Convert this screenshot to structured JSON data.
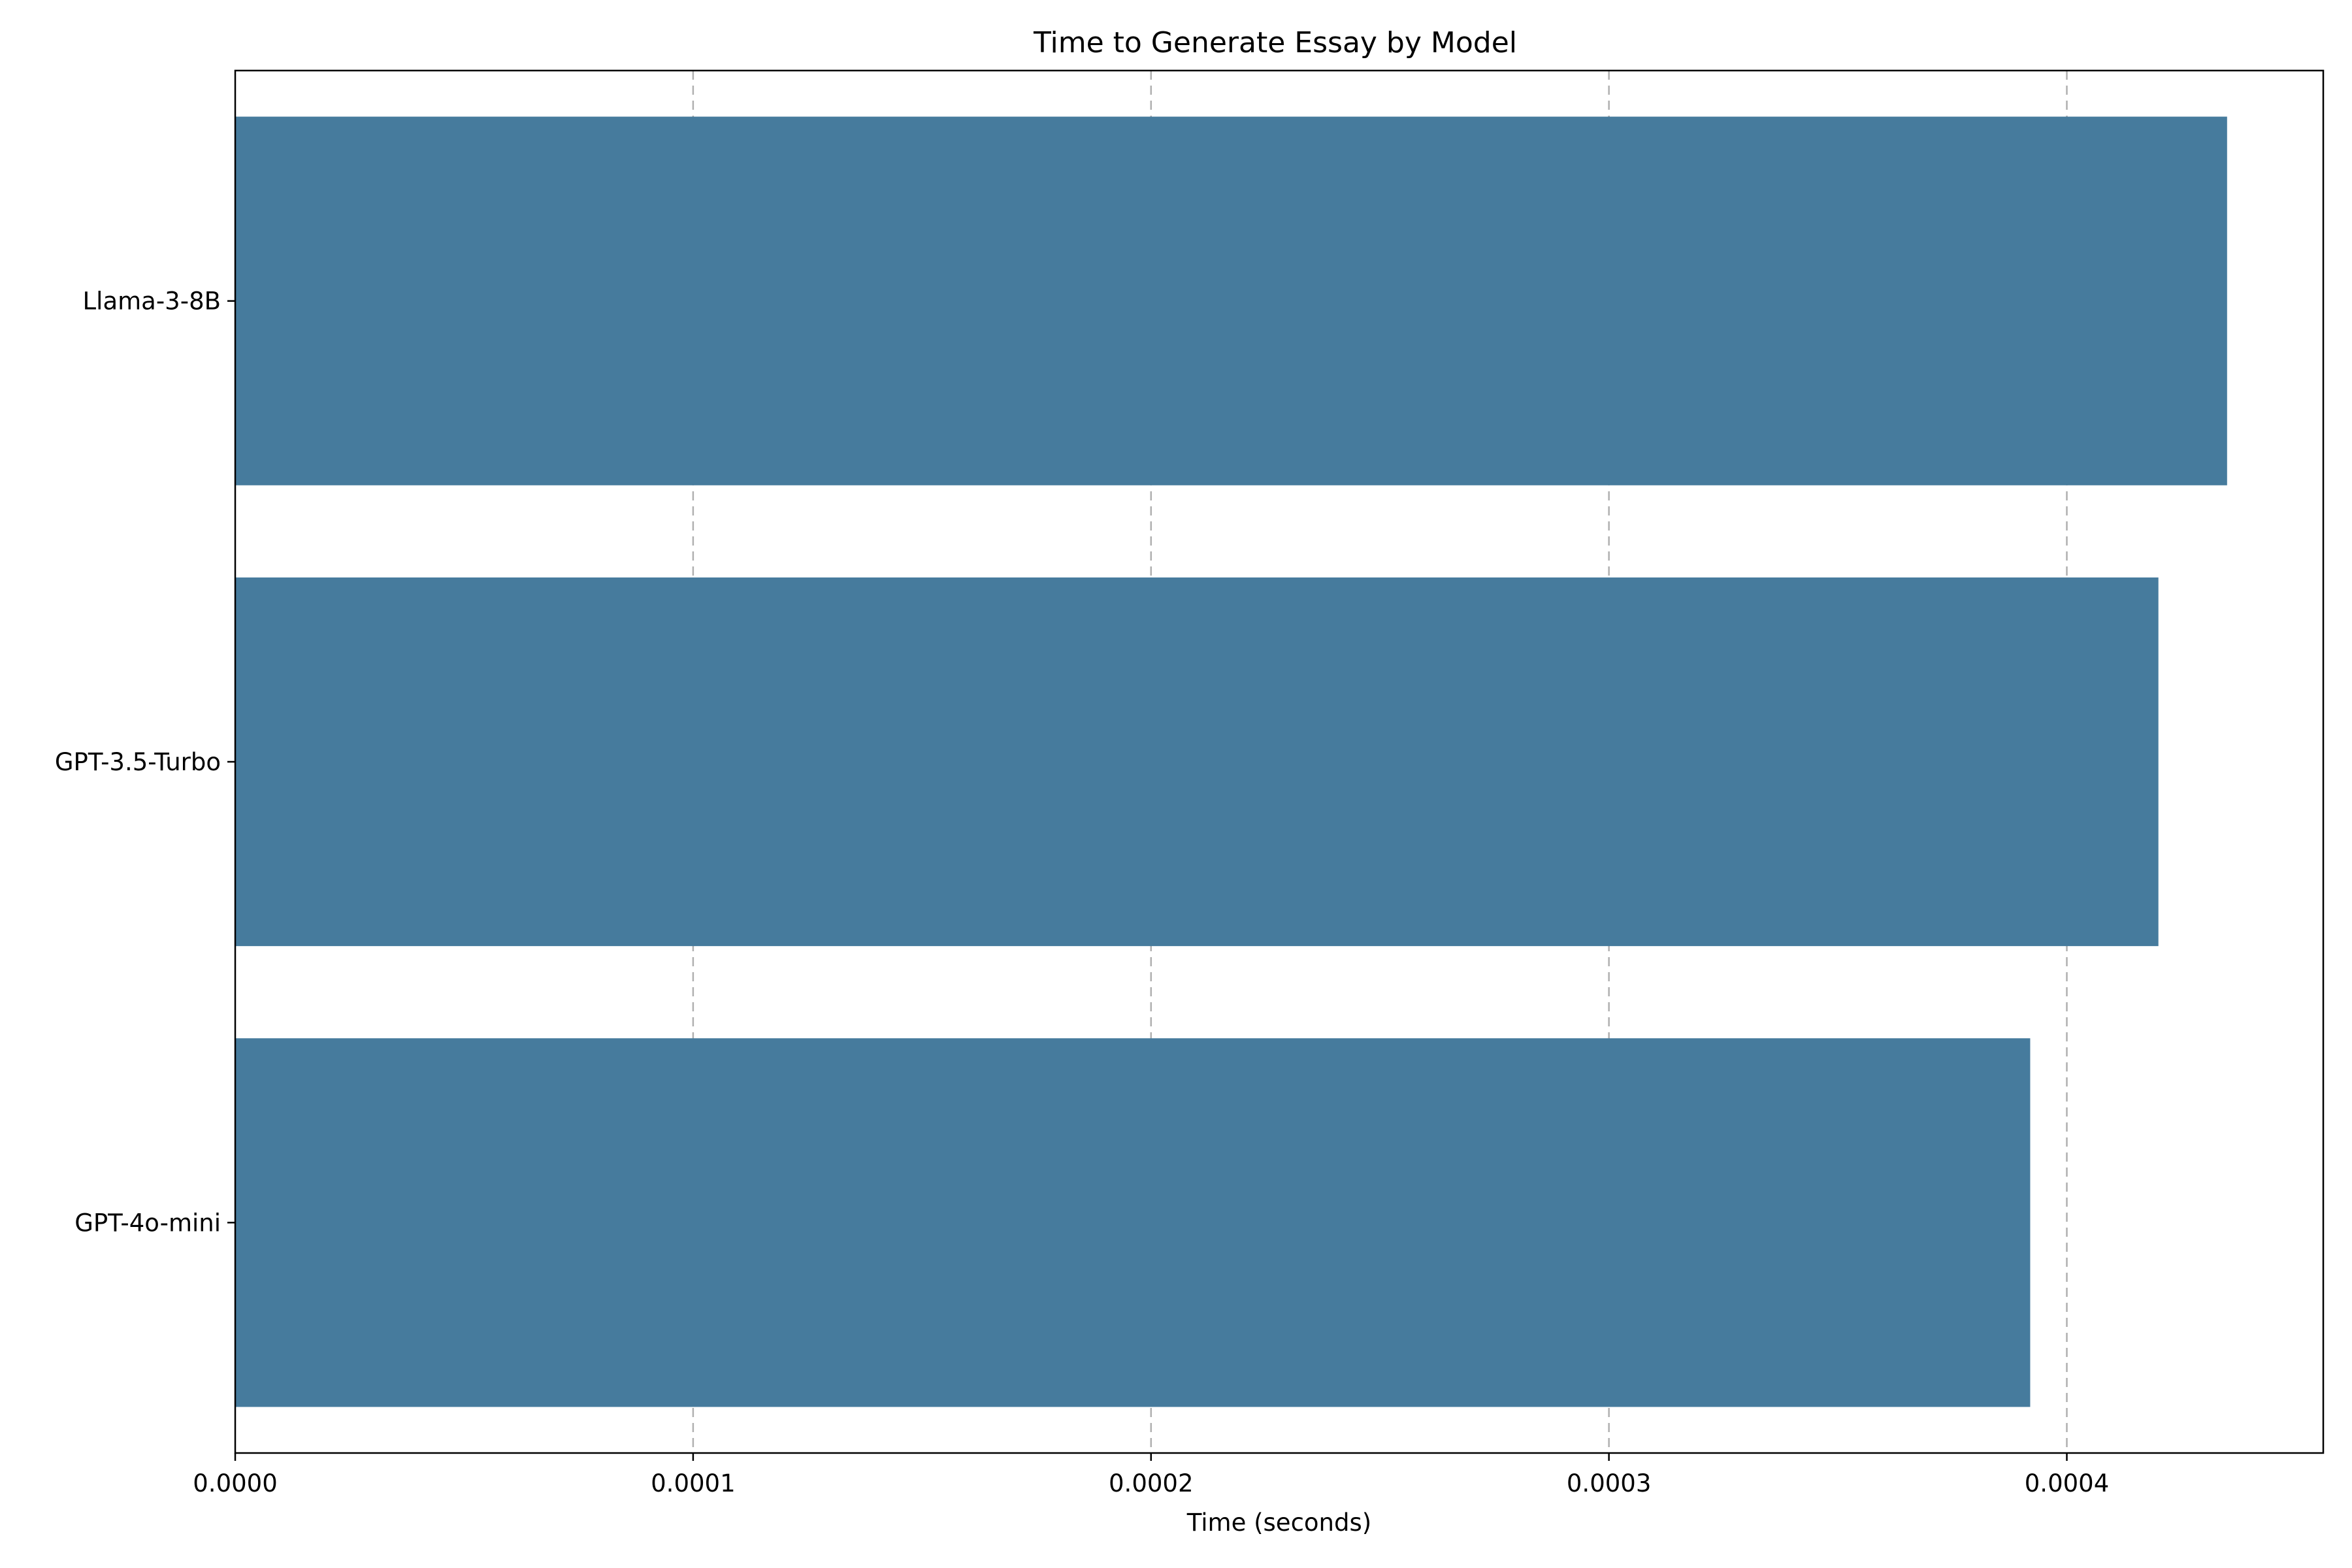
{
  "chart_data": {
    "type": "bar",
    "orientation": "horizontal",
    "title": "Time to Generate Essay by Model",
    "xlabel": "Time (seconds)",
    "ylabel": "",
    "categories": [
      "Llama-3-8B",
      "GPT-3.5-Turbo",
      "GPT-4o-mini"
    ],
    "values": [
      0.000435,
      0.00042,
      0.000392
    ],
    "xlim": [
      0,
      0.000456
    ],
    "xticks": [
      0,
      0.0001,
      0.0002,
      0.0003,
      0.0004
    ],
    "xtick_labels": [
      "0.0000",
      "0.0001",
      "0.0002",
      "0.0003",
      "0.0004"
    ],
    "grid": "x-axis dashed",
    "bar_color": "#467b9d"
  }
}
